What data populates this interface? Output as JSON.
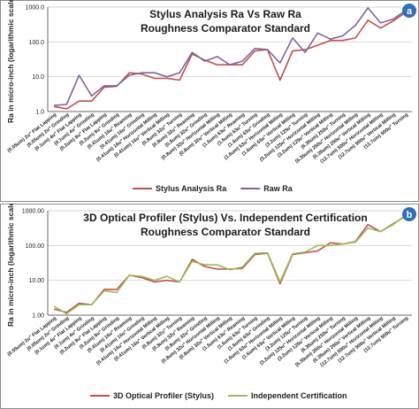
{
  "chart_data": [
    {
      "panel_letter": "a",
      "type": "line",
      "title": "Stylus Analysis Ra Vs Raw Ra",
      "subtitle": "Roughness Comparator Standard",
      "ylabel": "Ra in micro-inch (logarithmic scale)",
      "xlabel": "",
      "yscale": "log",
      "ylim": [
        1,
        1000
      ],
      "yticks": [
        "1.0",
        "10.0",
        "100.0",
        "1000.0"
      ],
      "grid": true,
      "legend_position": "bottom",
      "categories": [
        "(0.05um) 2u\" Flat Lapping",
        "(0.05um) 2u\" Grinding",
        "(0.1um) 4u\" Flat Lapping",
        "(0.1um) 4u\" Grinding",
        "(0.2um) 8u\" Flat Lapping",
        "(0.2um) 8u\" Grinding",
        "(0.41um) 16u\" Reaming",
        "(0.41um) 16u\" Grinding",
        "(0.41um) 16u\" Horizontal Milling",
        "(0.41um) 16u\" Vertical Milling",
        "(0.8um) 32u\" Turning",
        "(0.8um) 32u\" Reaming",
        "(0.8um) 32u\" Grinding",
        "(0.8um) 32u\" Horizontal Milling",
        "(0.8um) 32u\" Vertical Milling",
        "(1.6um) 63u\" Reaming",
        "(1.6um) 63u\" Turning",
        "(1.6um) 63u\" Grinding",
        "(1.6um) 63u\" Horizontal Milling",
        "(1.6um) 63u\" Vertical Milling",
        "(3.2um) 125u\" Turning",
        "(3.2um) 125u\" Horizontal Milling",
        "(3.2um) 125u\" Vertical Milling",
        "(6.35um) 250u\" Turning",
        "(6.35um) 250u\" Horizontal Milling",
        "(6.35um) 250u\" Vertical Milling",
        "(12.7um) 500u\" Horizontal Milling",
        "(12.7um) 500u\" Vertical Milling",
        "(12.7um) 500u\" Turning"
      ],
      "series": [
        {
          "name": "Stylus Analysis Ra",
          "color": "#c0504d",
          "values": [
            1.4,
            1.2,
            2.0,
            2.0,
            5.0,
            5.3,
            13.0,
            12.0,
            9.0,
            9.0,
            8.0,
            45.0,
            30.0,
            22.0,
            22.0,
            22.0,
            55.0,
            60.0,
            8.0,
            55.0,
            60.0,
            80.0,
            110.0,
            110.0,
            130.0,
            420.0,
            250.0,
            400.0,
            700.0
          ]
        },
        {
          "name": "Raw Ra",
          "color": "#8064a2",
          "values": [
            1.5,
            1.6,
            11.0,
            2.8,
            5.5,
            5.5,
            11.0,
            13.0,
            13.0,
            10.0,
            13.0,
            50.0,
            28.0,
            38.0,
            22.0,
            28.0,
            65.0,
            60.0,
            25.0,
            130.0,
            50.0,
            180.0,
            120.0,
            150.0,
            300.0,
            950.0,
            350.0,
            450.0,
            800.0
          ]
        }
      ]
    },
    {
      "panel_letter": "b",
      "type": "line",
      "title": "3D Optical Profiler (Stylus) Vs. Independent Certification",
      "subtitle": "Roughness Comparator Standard",
      "ylabel": "Ra in micro-inch (logarithmic scale)",
      "xlabel": "",
      "yscale": "log",
      "ylim": [
        1,
        1000
      ],
      "yticks": [
        "1.00",
        "10.00",
        "100.00",
        "1000.00"
      ],
      "grid": true,
      "legend_position": "bottom",
      "categories": [
        "(0.05um) 2u\" Flat Lapping",
        "(0.05um) 2u\" Grinding",
        "(0.1um) 4u\" Flat Lapping",
        "(0.1um) 4u\" Grinding",
        "(0.2um) 8u\" Flat Lapping",
        "(0.2um) 8u\" Grinding",
        "(0.41um) 16u\" Reaming",
        "(0.41um) 16u\" Grinding",
        "(0.41um) 16u\" Horizontal Milling",
        "(0.41um) 16u\" Vertical Milling",
        "(0.8um) 32u\" Turning",
        "(0.8um) 32u\" Reaming",
        "(0.8um) 32u\" Grinding",
        "(0.8um) 32u\" Horizontal Milling",
        "(0.8um) 32u\" Vertical Milling",
        "(1.6um) 63u\" Reaming",
        "(1.6um) 63u\" Turning",
        "(1.6um) 63u\" Grinding",
        "(1.6um) 63u\" Horizontal Milling",
        "(1.6um) 63u\" Vertical Milling",
        "(3.2um) 125u\" Turning",
        "(3.2um) 125u\" Horizontal Milling",
        "(3.2um) 125u\" Vertical Milling",
        "(6.35um) 250u\" Turning",
        "(6.35um) 250u\" Horizontal Milling",
        "(6.35um) 250u\" Vertical Milling",
        "(12.7um) 500u\" Horizontal Milling",
        "(12.7um) 500u\" Vertical Milling",
        "(12.7um) 500u\" Turning"
      ],
      "series": [
        {
          "name": "3D Optical Profiler (Stylus)",
          "color": "#c0504d",
          "values": [
            1.5,
            1.2,
            2.2,
            2.0,
            5.5,
            5.5,
            14.0,
            12.0,
            9.0,
            10.0,
            9.0,
            40.0,
            25.0,
            21.0,
            21.0,
            22.0,
            55.0,
            60.0,
            8.0,
            55.0,
            62.0,
            70.0,
            120.0,
            110.0,
            130.0,
            400.0,
            250.0,
            420.0,
            700.0
          ]
        },
        {
          "name": "Independent Certification",
          "color": "#9bbb59",
          "values": [
            1.8,
            1.1,
            2.0,
            2.0,
            5.0,
            4.5,
            14.0,
            13.0,
            10.0,
            13.0,
            9.0,
            35.0,
            28.0,
            28.0,
            20.0,
            24.0,
            60.0,
            62.0,
            9.0,
            58.0,
            65.0,
            100.0,
            100.0,
            110.0,
            125.0,
            320.0,
            250.0,
            400.0,
            750.0
          ]
        }
      ]
    }
  ]
}
